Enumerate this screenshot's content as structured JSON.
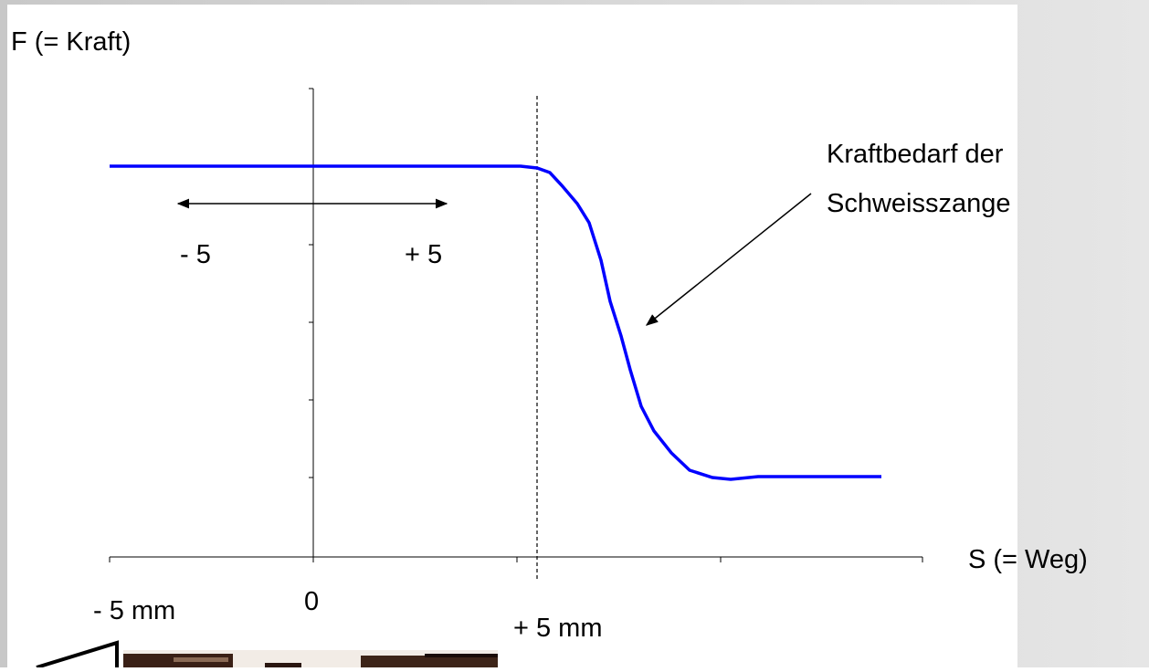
{
  "y_axis_label": "F (= Kraft)",
  "x_axis_label": "S (= Weg)",
  "annotation": [
    "Kraftbedarf der",
    "Schweisszange"
  ],
  "range_labels": {
    "left": "- 5",
    "right": "+ 5"
  },
  "axis_labels": {
    "zero": "0",
    "minus": "- 5 mm",
    "plus": "+ 5 mm"
  }
}
